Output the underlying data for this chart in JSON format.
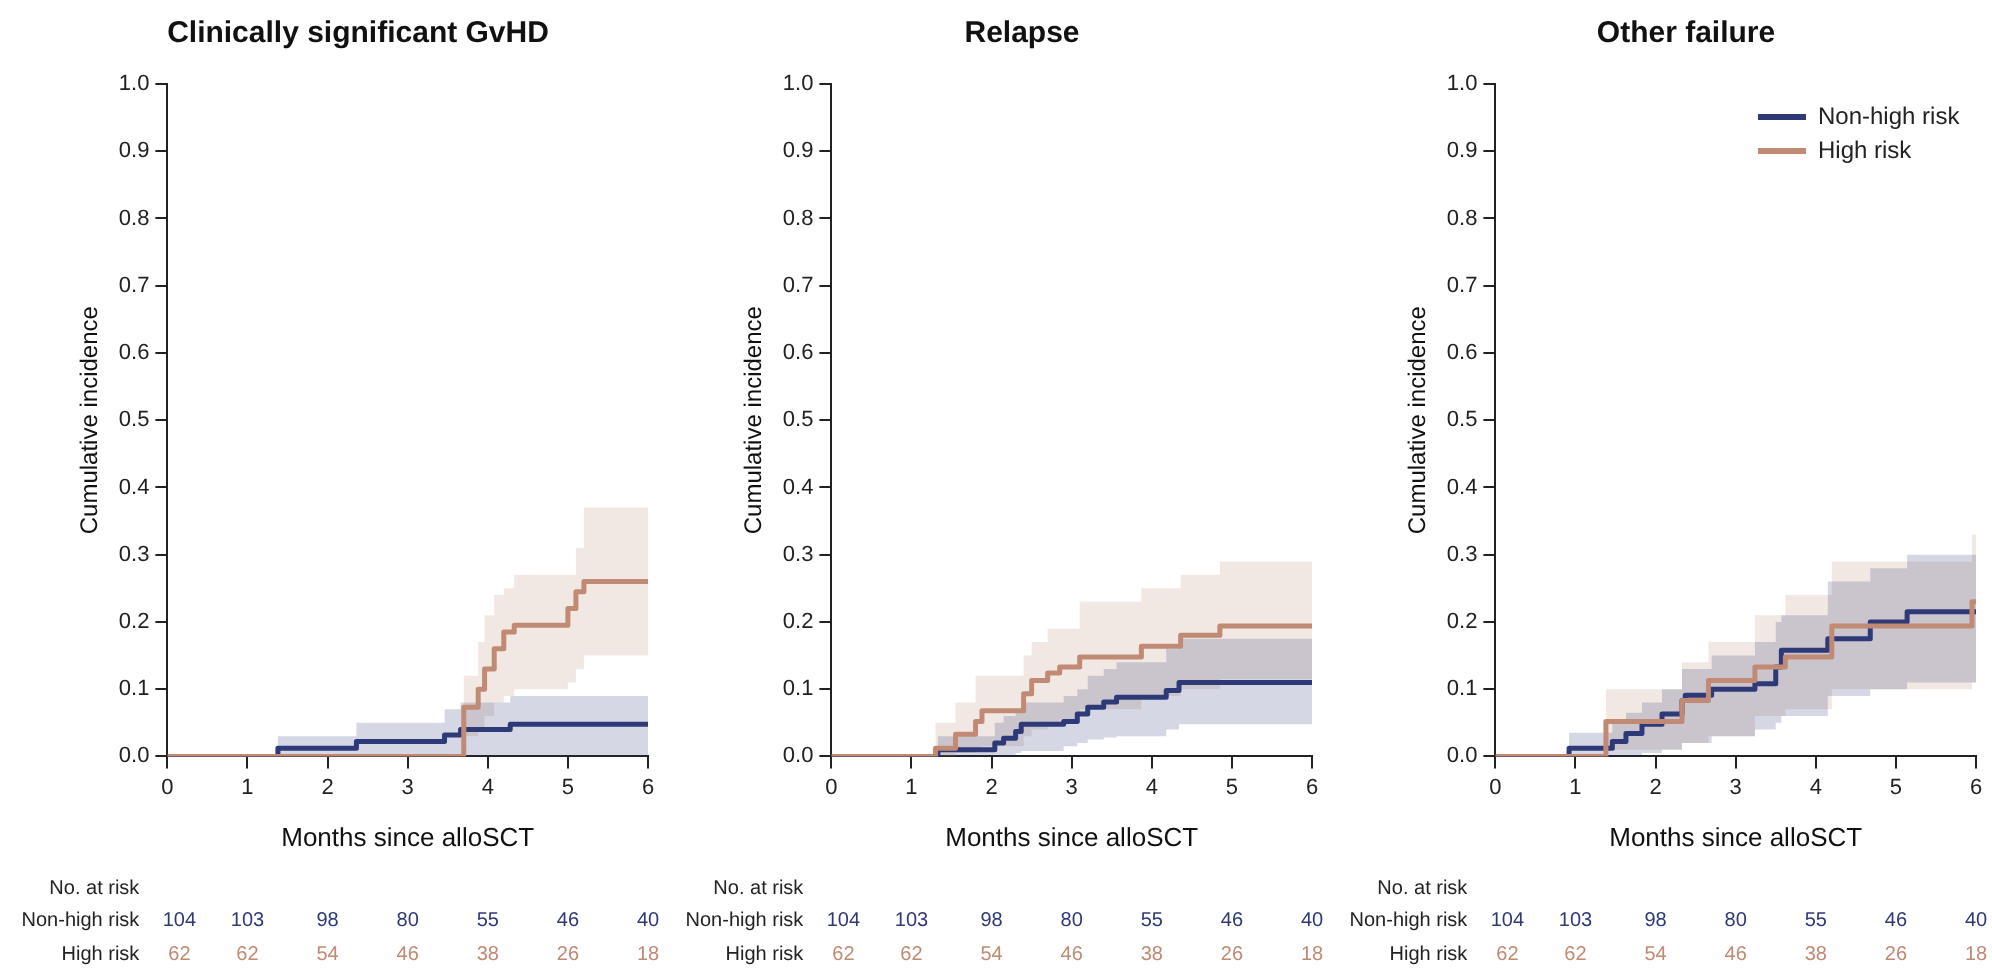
{
  "chart_data": [
    {
      "type": "step",
      "title": "Clinically significant GvHD",
      "xlabel": "Months since alloSCT",
      "ylabel": "Cumulative incidence",
      "xlim": [
        0,
        6
      ],
      "xticks": [
        0,
        1,
        2,
        3,
        4,
        5,
        6
      ],
      "ylim": [
        0,
        1
      ],
      "yticks": [
        {
          "value": 0,
          "label": "0.0"
        },
        {
          "value": 0.1,
          "label": "0.1"
        },
        {
          "value": 0.2,
          "label": "0.2"
        },
        {
          "value": 0.3,
          "label": "0.3"
        },
        {
          "value": 0.4,
          "label": "0.4"
        },
        {
          "value": 0.5,
          "label": "0.5"
        },
        {
          "value": 0.6,
          "label": "0.6"
        },
        {
          "value": 0.7,
          "label": "0.7"
        },
        {
          "value": 0.8,
          "label": "0.8"
        },
        {
          "value": 0.9,
          "label": "0.9"
        },
        {
          "value": 1,
          "label": "1.0"
        }
      ],
      "grid": false,
      "series": [
        {
          "color": "#2e3a78",
          "x": [
            0,
            1.38,
            2.36,
            3.46,
            3.66,
            4.28,
            6
          ],
          "values": [
            0,
            0.012,
            0.022,
            0.032,
            0.04,
            0.048,
            0.048
          ],
          "lower": [
            0,
            0,
            0,
            0,
            0,
            0,
            0
          ],
          "upper": [
            0,
            0.03,
            0.05,
            0.07,
            0.08,
            0.09,
            0.09
          ]
        },
        {
          "color": "#c08a74",
          "x": [
            0,
            3.7,
            3.88,
            3.96,
            4.08,
            4.2,
            4.33,
            5.0,
            5.1,
            5.2,
            6
          ],
          "values": [
            0,
            0.073,
            0.1,
            0.13,
            0.16,
            0.185,
            0.195,
            0.22,
            0.245,
            0.26,
            0.26
          ],
          "lower": [
            0,
            0.03,
            0.04,
            0.06,
            0.08,
            0.09,
            0.1,
            0.11,
            0.13,
            0.15,
            0.15
          ],
          "upper": [
            0,
            0.12,
            0.17,
            0.21,
            0.24,
            0.25,
            0.27,
            0.27,
            0.31,
            0.37,
            0.37
          ]
        }
      ],
      "annotations": [
        "No. at risk",
        "Non-high risk",
        "104",
        "103",
        "98",
        "80",
        "55",
        "46",
        "40",
        "High risk",
        "62",
        "62",
        "54",
        "46",
        "38",
        "26",
        "18"
      ]
    },
    {
      "type": "step",
      "title": "Relapse",
      "xlabel": "Months since alloSCT",
      "ylabel": "Cumulative incidence",
      "xlim": [
        0,
        6
      ],
      "xticks": [
        0,
        1,
        2,
        3,
        4,
        5,
        6
      ],
      "ylim": [
        0,
        1
      ],
      "yticks": [
        {
          "value": 0,
          "label": "0.0"
        },
        {
          "value": 0.1,
          "label": "0.1"
        },
        {
          "value": 0.2,
          "label": "0.2"
        },
        {
          "value": 0.3,
          "label": "0.3"
        },
        {
          "value": 0.4,
          "label": "0.4"
        },
        {
          "value": 0.5,
          "label": "0.5"
        },
        {
          "value": 0.6,
          "label": "0.6"
        },
        {
          "value": 0.7,
          "label": "0.7"
        },
        {
          "value": 0.8,
          "label": "0.8"
        },
        {
          "value": 0.9,
          "label": "0.9"
        },
        {
          "value": 1,
          "label": "1.0"
        }
      ],
      "grid": false,
      "series": [
        {
          "color": "#2e3a78",
          "x": [
            0,
            1.33,
            2.04,
            2.15,
            2.3,
            2.37,
            2.9,
            3.07,
            3.2,
            3.4,
            3.56,
            4.18,
            4.34,
            6
          ],
          "values": [
            0,
            0.01,
            0.02,
            0.027,
            0.037,
            0.048,
            0.052,
            0.063,
            0.073,
            0.081,
            0.088,
            0.098,
            0.11,
            0.11
          ],
          "lower": [
            0,
            0,
            0,
            0,
            0.005,
            0.008,
            0.015,
            0.02,
            0.025,
            0.028,
            0.03,
            0.04,
            0.048,
            0.048
          ],
          "upper": [
            0,
            0.03,
            0.05,
            0.06,
            0.07,
            0.08,
            0.09,
            0.1,
            0.12,
            0.13,
            0.14,
            0.16,
            0.175,
            0.175
          ]
        },
        {
          "color": "#c08a74",
          "x": [
            0,
            1.3,
            1.55,
            1.8,
            1.88,
            2.4,
            2.5,
            2.7,
            2.85,
            3.1,
            3.87,
            4.36,
            4.85,
            6
          ],
          "values": [
            0,
            0.012,
            0.033,
            0.052,
            0.068,
            0.093,
            0.113,
            0.124,
            0.133,
            0.148,
            0.164,
            0.18,
            0.194,
            0.194
          ],
          "lower": [
            0,
            0,
            0.005,
            0.01,
            0.015,
            0.03,
            0.04,
            0.05,
            0.055,
            0.07,
            0.09,
            0.1,
            0.115,
            0.115
          ],
          "upper": [
            0,
            0.05,
            0.08,
            0.12,
            0.12,
            0.15,
            0.17,
            0.19,
            0.19,
            0.23,
            0.25,
            0.27,
            0.29,
            0.29
          ]
        }
      ],
      "annotations": [
        "No. at risk",
        "Non-high risk",
        "104",
        "103",
        "98",
        "80",
        "55",
        "46",
        "40",
        "High risk",
        "62",
        "62",
        "54",
        "46",
        "38",
        "26",
        "18"
      ]
    },
    {
      "type": "step",
      "title": "Other failure",
      "xlabel": "Months since alloSCT",
      "ylabel": "Cumulative incidence",
      "xlim": [
        0,
        6
      ],
      "xticks": [
        0,
        1,
        2,
        3,
        4,
        5,
        6
      ],
      "ylim": [
        0,
        1
      ],
      "yticks": [
        {
          "value": 0,
          "label": "0.0"
        },
        {
          "value": 0.1,
          "label": "0.1"
        },
        {
          "value": 0.2,
          "label": "0.2"
        },
        {
          "value": 0.3,
          "label": "0.3"
        },
        {
          "value": 0.4,
          "label": "0.4"
        },
        {
          "value": 0.5,
          "label": "0.5"
        },
        {
          "value": 0.6,
          "label": "0.6"
        },
        {
          "value": 0.7,
          "label": "0.7"
        },
        {
          "value": 0.8,
          "label": "0.8"
        },
        {
          "value": 0.9,
          "label": "0.9"
        },
        {
          "value": 1,
          "label": "1.0"
        }
      ],
      "grid": false,
      "legend": "top right",
      "series": [
        {
          "name": "Non-high risk",
          "color": "#2e3a78",
          "x": [
            0,
            0.92,
            1.46,
            1.63,
            1.83,
            2.08,
            2.33,
            2.37,
            2.7,
            3.24,
            3.5,
            3.57,
            4.15,
            4.68,
            5.14,
            6
          ],
          "values": [
            0,
            0.012,
            0.022,
            0.034,
            0.048,
            0.063,
            0.083,
            0.091,
            0.1,
            0.108,
            0.133,
            0.158,
            0.175,
            0.2,
            0.215,
            0.215
          ],
          "lower": [
            0,
            0,
            0,
            0,
            0.005,
            0.01,
            0.02,
            0.02,
            0.03,
            0.04,
            0.05,
            0.06,
            0.09,
            0.1,
            0.11,
            0.11
          ],
          "upper": [
            0,
            0.035,
            0.05,
            0.065,
            0.08,
            0.1,
            0.13,
            0.13,
            0.15,
            0.17,
            0.2,
            0.21,
            0.26,
            0.28,
            0.3,
            0.3
          ]
        },
        {
          "name": "High risk",
          "color": "#c08a74",
          "x": [
            0,
            1.38,
            2.33,
            2.66,
            3.24,
            3.62,
            4.2,
            5.95,
            6
          ],
          "values": [
            0,
            0.052,
            0.083,
            0.113,
            0.133,
            0.148,
            0.194,
            0.23,
            0.23
          ],
          "lower": [
            0,
            0.01,
            0.02,
            0.03,
            0.06,
            0.07,
            0.1,
            0.11,
            0.11
          ],
          "upper": [
            0,
            0.1,
            0.14,
            0.17,
            0.21,
            0.24,
            0.29,
            0.33,
            0.33
          ]
        }
      ],
      "annotations": [
        "No. at risk",
        "Non-high risk",
        "104",
        "103",
        "98",
        "80",
        "55",
        "46",
        "40",
        "High risk",
        "62",
        "62",
        "54",
        "46",
        "38",
        "26",
        "18"
      ]
    }
  ]
}
